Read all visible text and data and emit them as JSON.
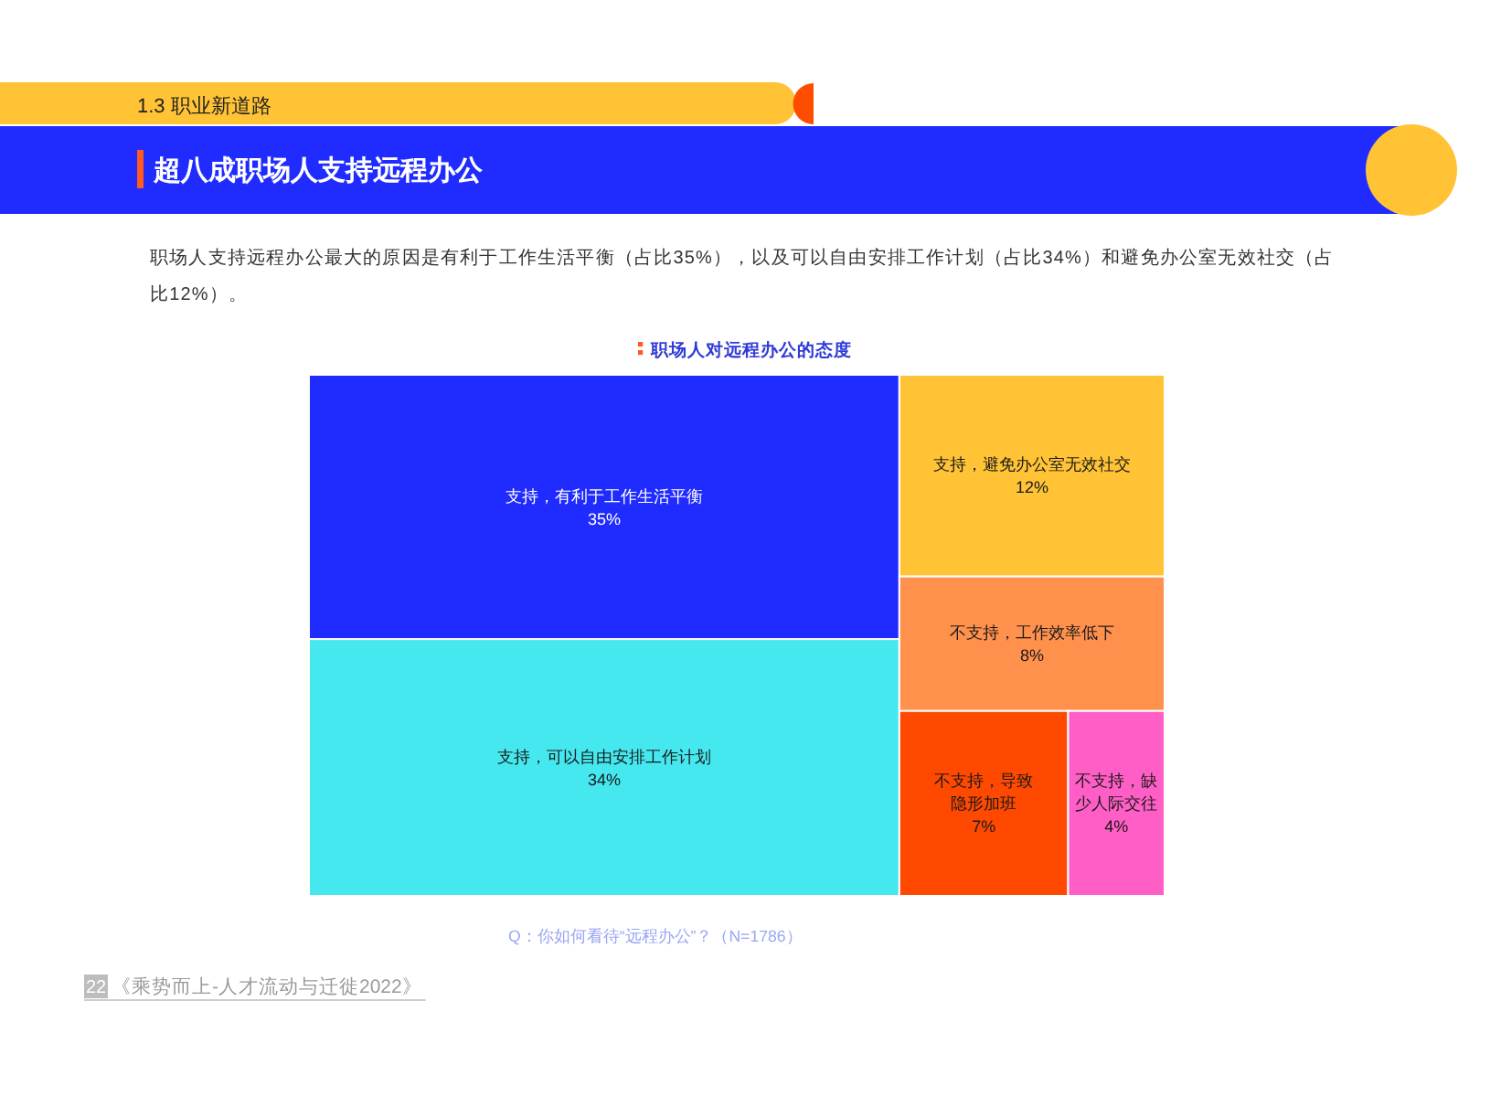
{
  "chart_data": {
    "type": "other",
    "title": "职场人对远程办公的态度",
    "categories": [
      "支持，有利于工作生活平衡",
      "支持，可以自由安排工作计划",
      "支持，避免办公室无效社交",
      "不支持，工作效率低下",
      "不支持，导致隐形加班",
      "不支持，缺少人际交往"
    ],
    "values": [
      35,
      34,
      12,
      8,
      7,
      4
    ],
    "value_labels": [
      "35%",
      "34%",
      "12%",
      "8%",
      "7%",
      "4%"
    ],
    "colors": [
      "#1f2bff",
      "#45e8ef",
      "#ffc335",
      "#ff914d",
      "#ff4800",
      "#ff5ec6"
    ],
    "annotations": [
      "1.3 职业新道路",
      "超八成职场人支持远程办公",
      "职场人支持远程办公最大的原因是有利于工作生活平衡（占比35%），以及可以自由安排工作计划（占比34%）和避免办公室无效社交（占比12%）。",
      "Q：你如何看待“远程办公”？（N=1786）",
      "22",
      "《乘势而上-人才流动与迁徙2022》"
    ]
  }
}
